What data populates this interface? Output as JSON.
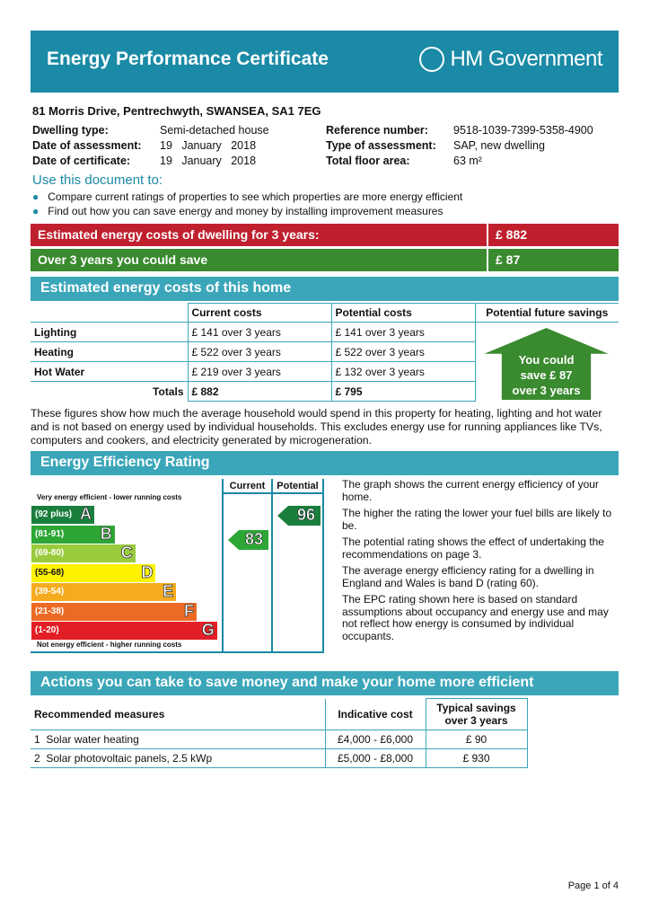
{
  "header": {
    "title": "Energy Performance Certificate",
    "logo_text": "HM Government"
  },
  "address": "81 Morris Drive, Pentrechwyth, SWANSEA, SA1 7EG",
  "details_left": [
    {
      "label": "Dwelling type:",
      "value": "Semi-detached house"
    },
    {
      "label": "Date of assessment:",
      "value": "19   January   2018"
    },
    {
      "label": "Date of certificate:",
      "value": "19   January   2018"
    }
  ],
  "details_right": [
    {
      "label": "Reference number:",
      "value": "9518-1039-7399-5358-4900"
    },
    {
      "label": "Type of assessment:",
      "value": "SAP, new dwelling"
    },
    {
      "label": "Total floor area:",
      "value": "63 m²"
    }
  ],
  "use_heading": "Use this document to:",
  "bullets": [
    "Compare current ratings of properties to see which properties are more energy efficient",
    "Find out how you can save energy and money by installing improvement measures"
  ],
  "cost_bars": [
    {
      "label": "Estimated energy costs of dwelling for 3 years:",
      "value": "£ 882",
      "color": "#c0202e"
    },
    {
      "label": "Over 3 years you could save",
      "value": "£ 87",
      "color": "#3a8a2f"
    }
  ],
  "costs_section": {
    "title": "Estimated energy costs of this home",
    "headers": [
      "",
      "Current costs",
      "Potential costs",
      "Potential future savings"
    ],
    "rows": [
      {
        "label": "Lighting",
        "current": "£ 141 over 3 years",
        "potential": "£ 141 over 3 years"
      },
      {
        "label": "Heating",
        "current": "£ 522 over 3 years",
        "potential": "£ 522 over 3 years"
      },
      {
        "label": "Hot Water",
        "current": "£ 219 over 3 years",
        "potential": "£ 132 over 3 years"
      }
    ],
    "totals": {
      "label": "Totals",
      "current": "£ 882",
      "potential": "£ 795"
    },
    "savings_badge": [
      "You could",
      "save £ 87",
      "over 3 years"
    ]
  },
  "costs_note": "These figures show how much the average household would spend in this property for heating, lighting and hot water and is not based on energy used by individual households. This excludes energy use for running appliances like TVs, computers and cookers, and electricity generated by microgeneration.",
  "rating_section": {
    "title": "Energy Efficiency Rating",
    "col_current": "Current",
    "col_potential": "Potential",
    "top_note": "Very energy efficient - lower running costs",
    "bottom_note": "Not energy efficient - higher running costs",
    "bands": [
      {
        "range": "(92 plus)",
        "letter": "A",
        "color": "#1a7f3d"
      },
      {
        "range": "(81-91)",
        "letter": "B",
        "color": "#2da636"
      },
      {
        "range": "(69-80)",
        "letter": "C",
        "color": "#9acb3c"
      },
      {
        "range": "(55-68)",
        "letter": "D",
        "color": "#fff200"
      },
      {
        "range": "(39-54)",
        "letter": "E",
        "color": "#f6ab1f"
      },
      {
        "range": "(21-38)",
        "letter": "F",
        "color": "#ec6a24"
      },
      {
        "range": "(1-20)",
        "letter": "G",
        "color": "#e21f26"
      }
    ],
    "current": "83",
    "current_color": "#2da636",
    "potential": "96",
    "potential_color": "#1a7f3d",
    "explanation": [
      "The graph shows the current energy efficiency of your home.",
      "The higher the rating the lower your fuel bills are likely to be.",
      "The potential rating shows the effect of undertaking the recommendations on page 3.",
      "The average energy efficiency rating for a dwelling in England and Wales is band D (rating 60).",
      "The EPC rating shown here is based on standard assumptions about occupancy and energy use and may not reflect how energy is consumed by individual occupants."
    ]
  },
  "actions_section": {
    "title": "Actions you can take to save money and make your home more efficient",
    "headers": [
      "Recommended measures",
      "Indicative cost",
      "Typical savings over 3 years"
    ],
    "rows": [
      {
        "num": "1",
        "measure": "Solar water heating",
        "cost": "£4,000 - £6,000",
        "saving": "£ 90"
      },
      {
        "num": "2",
        "measure": "Solar photovoltaic panels, 2.5 kWp",
        "cost": "£5,000 - £8,000",
        "saving": "£ 930"
      }
    ]
  },
  "footer": "Page 1 of 4"
}
